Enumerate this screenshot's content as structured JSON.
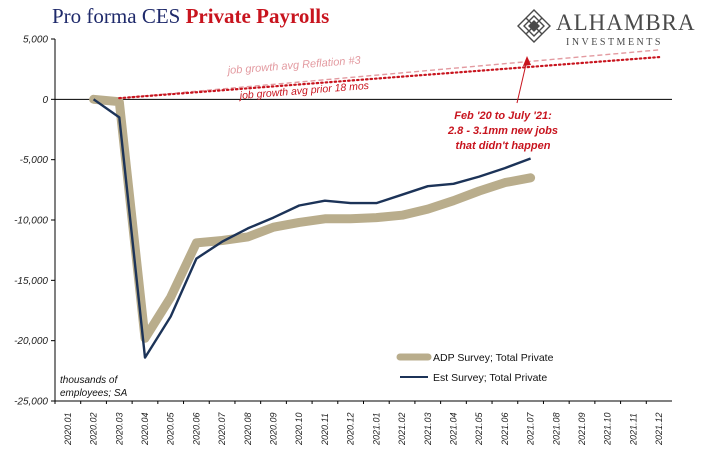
{
  "header": {
    "title_part1": "Pro forma CES ",
    "title_part2": "Private Payrolls",
    "logo_name": "ALHAMBRA",
    "logo_sub": "INVESTMENTS"
  },
  "colors": {
    "adp": "#b9ad8c",
    "est": "#1c3358",
    "accent_red": "#c8141e",
    "reflation_pink": "#e39aa0",
    "title_navy": "#1f2a6b"
  },
  "chart_data": {
    "type": "line",
    "categories": [
      "2020.01",
      "2020.02",
      "2020.03",
      "2020.04",
      "2020.05",
      "2020.06",
      "2020.07",
      "2020.08",
      "2020.09",
      "2020.10",
      "2020.11",
      "2020.12",
      "2021.01",
      "2021.02",
      "2021.03",
      "2021.04",
      "2021.05",
      "2021.06",
      "2021.07",
      "2021.08",
      "2021.09",
      "2021.10",
      "2021.11",
      "2021.12"
    ],
    "ylim": [
      -25000,
      5000
    ],
    "yticks": [
      5000,
      0,
      -5000,
      -10000,
      -15000,
      -20000,
      -25000
    ],
    "ytick_labels": [
      "5,000",
      "0",
      "-5,000",
      "-10,000",
      "-15,000",
      "-20,000",
      "-25,000"
    ],
    "ylabel": "thousands of employees; SA",
    "series": [
      {
        "name": "ADP Survey; Total Private",
        "style": "thick",
        "values": [
          null,
          0,
          -200,
          -19800,
          -16400,
          -11900,
          -11700,
          -11400,
          -10600,
          -10200,
          -9900,
          -9900,
          -9800,
          -9600,
          -9100,
          -8400,
          -7600,
          -6900,
          -6500,
          null,
          null,
          null,
          null,
          null
        ]
      },
      {
        "name": "Est Survey; Total Private",
        "style": "thin",
        "values": [
          null,
          0,
          -1500,
          -21400,
          -18000,
          -13200,
          -11800,
          -10700,
          -9800,
          -8800,
          -8400,
          -8600,
          -8600,
          -7900,
          -7200,
          -7000,
          -6400,
          -5700,
          -4900,
          null,
          null,
          null,
          null,
          null
        ]
      },
      {
        "name": "job growth avg Reflation #3",
        "style": "dashed",
        "start": {
          "x": "2020.03",
          "y": 100
        },
        "end": {
          "x": "2021.12",
          "y": 4100
        }
      },
      {
        "name": "job growth avg prior 18 mos",
        "style": "dotted",
        "start": {
          "x": "2020.03",
          "y": 100
        },
        "end": {
          "x": "2021.12",
          "y": 3500
        }
      }
    ],
    "annotations": {
      "reflation_label": "job growth avg Reflation #3",
      "prior_label": "job growth avg prior 18 mos",
      "callout_lines": [
        "Feb '20 to July '21:",
        "2.8 - 3.1mm new jobs",
        "that didn't happen"
      ]
    },
    "legend": {
      "placement": "bottom-right",
      "grid": false
    }
  }
}
